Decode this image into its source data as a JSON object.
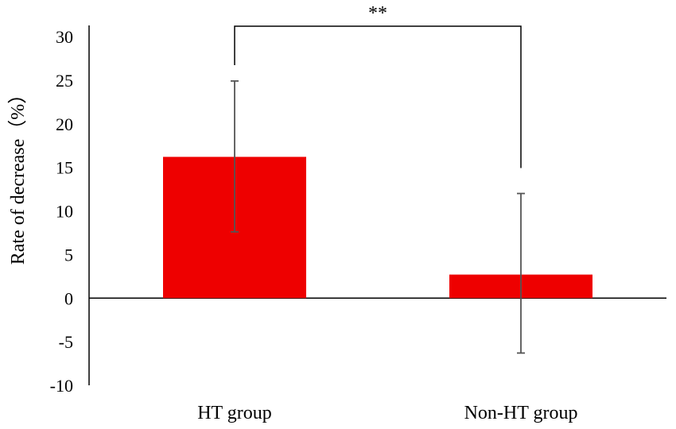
{
  "chart_data": {
    "type": "bar",
    "categories": [
      "HT group",
      "Non-HT group"
    ],
    "values": [
      16.2,
      2.7
    ],
    "error_upper": [
      24.9,
      12.0
    ],
    "error_lower": [
      7.6,
      -6.3
    ],
    "ylabel": "Rate of decrease（%）",
    "xlabel": "",
    "ylim": [
      -10,
      30
    ],
    "yticks": [
      "30",
      "25",
      "20",
      "15",
      "10",
      "5",
      "0",
      "-5",
      "-10"
    ],
    "significance": {
      "between": [
        "HT group",
        "Non-HT group"
      ],
      "label": "**"
    },
    "grid": false,
    "legend": "none",
    "bar_color": "#ee0000"
  }
}
